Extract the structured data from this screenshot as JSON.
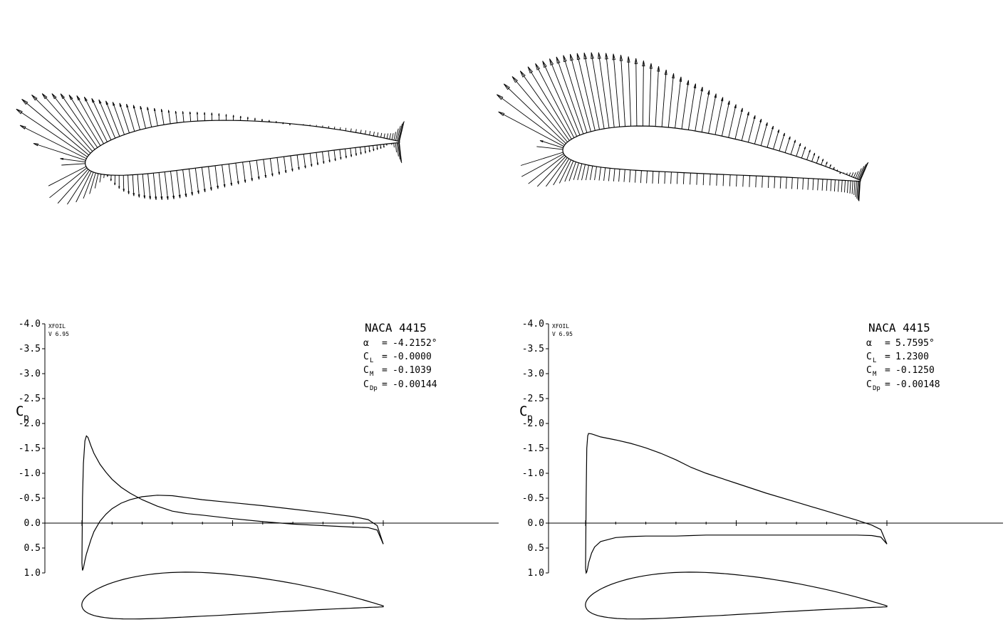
{
  "chart_data": [
    {
      "type": "line",
      "program": "XFOIL",
      "version": "V 6.95",
      "airfoil": "NACA 4415",
      "alpha_label": "α",
      "alpha": "-4.2152°",
      "cl_label": "C",
      "cl_sub": "L",
      "cl": "-0.0000",
      "cm_label": "C",
      "cm_sub": "M",
      "cm": "-0.1039",
      "cdp_label": "C",
      "cdp_sub": "Dp",
      "cdp": "-0.00144",
      "ylabel": "C",
      "ylabel_sub": "p",
      "ylim": [
        -4.0,
        1.0
      ],
      "yticks": [
        "-4.0",
        "-3.5",
        "-3.0",
        "-2.5",
        "-2.0",
        "-1.5",
        "-1.0",
        "-0.5",
        "0.0",
        "0.5",
        "1.0"
      ],
      "yreversed": true,
      "xlim": [
        0,
        1
      ],
      "series": [
        {
          "x": [
            0.0,
            0.002,
            0.005,
            0.01,
            0.015,
            0.02,
            0.03,
            0.04,
            0.06,
            0.08,
            0.1,
            0.13,
            0.16,
            0.2,
            0.25,
            0.3,
            0.35,
            0.4,
            0.5,
            0.6,
            0.7,
            0.8,
            0.9,
            0.95,
            0.98,
            1.0
          ],
          "y": [
            0.8,
            -0.5,
            -1.2,
            -1.65,
            -1.75,
            -1.72,
            -1.55,
            -1.4,
            -1.18,
            -1.02,
            -0.88,
            -0.72,
            -0.6,
            -0.47,
            -0.34,
            -0.24,
            -0.19,
            -0.16,
            -0.09,
            -0.03,
            0.02,
            0.05,
            0.08,
            0.09,
            0.14,
            0.42
          ]
        },
        {
          "x": [
            0.0,
            0.002,
            0.005,
            0.01,
            0.015,
            0.02,
            0.03,
            0.04,
            0.06,
            0.08,
            0.1,
            0.13,
            0.16,
            0.2,
            0.25,
            0.3,
            0.35,
            0.4,
            0.5,
            0.6,
            0.7,
            0.8,
            0.9,
            0.95,
            0.98,
            1.0
          ],
          "y": [
            0.8,
            0.95,
            0.9,
            0.75,
            0.62,
            0.52,
            0.33,
            0.17,
            -0.04,
            -0.18,
            -0.29,
            -0.4,
            -0.47,
            -0.53,
            -0.56,
            -0.55,
            -0.51,
            -0.47,
            -0.41,
            -0.35,
            -0.28,
            -0.21,
            -0.13,
            -0.07,
            0.05,
            0.42
          ]
        }
      ]
    },
    {
      "type": "line",
      "program": "XFOIL",
      "version": "V 6.95",
      "airfoil": "NACA 4415",
      "alpha_label": "α",
      "alpha": "5.7595°",
      "cl_label": "C",
      "cl_sub": "L",
      "cl": "1.2300",
      "cm_label": "C",
      "cm_sub": "M",
      "cm": "-0.1250",
      "cdp_label": "C",
      "cdp_sub": "Dp",
      "cdp": "-0.00148",
      "ylabel": "C",
      "ylabel_sub": "p",
      "ylim": [
        -4.0,
        1.0
      ],
      "yticks": [
        "-4.0",
        "-3.5",
        "-3.0",
        "-2.5",
        "-2.0",
        "-1.5",
        "-1.0",
        "-0.5",
        "0.0",
        "0.5",
        "1.0"
      ],
      "yreversed": true,
      "xlim": [
        0,
        1
      ],
      "series": [
        {
          "x": [
            0.0,
            0.002,
            0.004,
            0.007,
            0.01,
            0.02,
            0.03,
            0.05,
            0.1,
            0.15,
            0.2,
            0.25,
            0.3,
            0.35,
            0.4,
            0.5,
            0.6,
            0.7,
            0.8,
            0.9,
            0.95,
            0.98,
            1.0
          ],
          "y": [
            0.9,
            -0.5,
            -1.5,
            -1.75,
            -1.8,
            -1.79,
            -1.77,
            -1.73,
            -1.67,
            -1.6,
            -1.51,
            -1.4,
            -1.27,
            -1.12,
            -1.0,
            -0.8,
            -0.6,
            -0.42,
            -0.24,
            -0.06,
            0.04,
            0.13,
            0.42
          ]
        },
        {
          "x": [
            0.0,
            0.002,
            0.004,
            0.007,
            0.01,
            0.02,
            0.03,
            0.05,
            0.1,
            0.15,
            0.2,
            0.25,
            0.3,
            0.35,
            0.4,
            0.5,
            0.6,
            0.7,
            0.8,
            0.9,
            0.95,
            0.98,
            1.0
          ],
          "y": [
            0.9,
            1.0,
            0.98,
            0.9,
            0.8,
            0.6,
            0.48,
            0.37,
            0.29,
            0.27,
            0.26,
            0.26,
            0.26,
            0.25,
            0.24,
            0.24,
            0.24,
            0.24,
            0.24,
            0.24,
            0.25,
            0.28,
            0.42
          ]
        }
      ]
    }
  ]
}
